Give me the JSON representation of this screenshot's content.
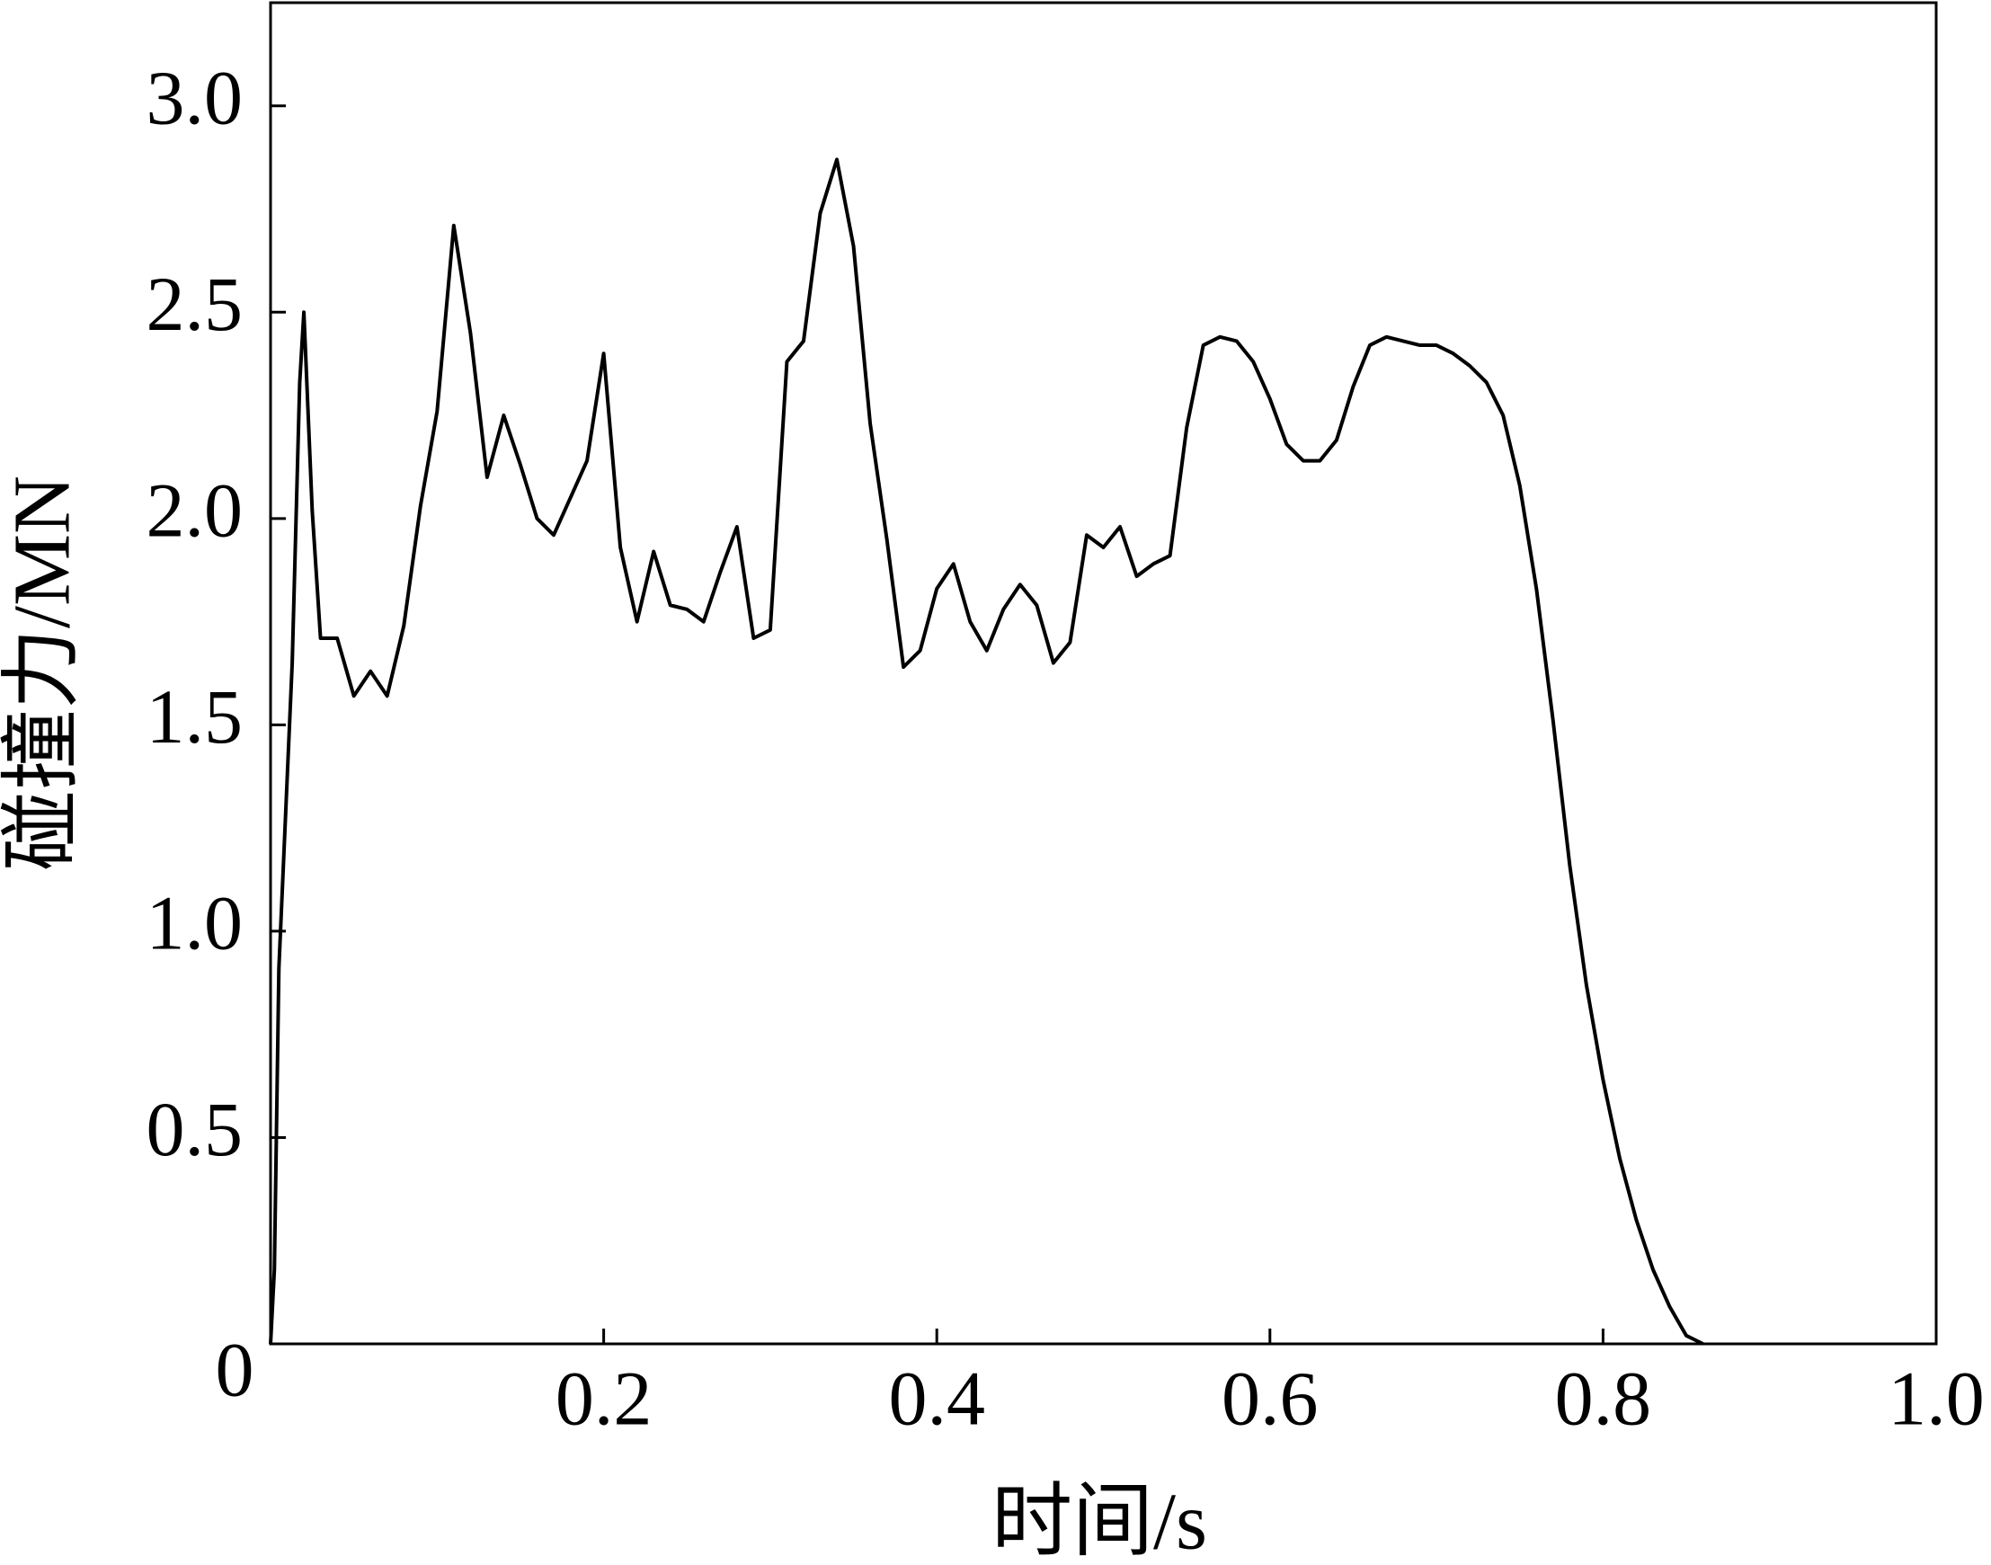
{
  "chart_data": {
    "type": "line",
    "xlabel": "时间/s",
    "ylabel": "碰撞力/MN",
    "color": "#000000",
    "xlim": [
      0,
      1
    ],
    "ylim": [
      0,
      3.25
    ],
    "xticks": [
      0,
      0.2,
      0.4,
      0.6,
      0.8,
      {
        "value": 1,
        "label": "1.0"
      }
    ],
    "yticks": [
      0.5,
      {
        "value": 1,
        "label": "1.0"
      },
      1.5,
      {
        "value": 2,
        "label": "2.0"
      },
      2.5,
      {
        "value": 3,
        "label": "3.0"
      }
    ],
    "x": [
      0,
      0.0023,
      0.005,
      0.009,
      0.013,
      0.0175,
      0.02,
      0.025,
      0.03,
      0.04,
      0.05,
      0.06,
      0.07,
      0.08,
      0.09,
      0.1,
      0.11,
      0.12,
      0.13,
      0.14,
      0.15,
      0.16,
      0.17,
      0.18,
      0.19,
      0.2,
      0.21,
      0.22,
      0.23,
      0.24,
      0.25,
      0.26,
      0.27,
      0.28,
      0.29,
      0.3,
      0.31,
      0.32,
      0.33,
      0.34,
      0.35,
      0.36,
      0.37,
      0.38,
      0.39,
      0.4,
      0.41,
      0.42,
      0.43,
      0.44,
      0.45,
      0.46,
      0.47,
      0.48,
      0.49,
      0.5,
      0.51,
      0.52,
      0.53,
      0.54,
      0.55,
      0.56,
      0.57,
      0.58,
      0.59,
      0.6,
      0.61,
      0.62,
      0.63,
      0.64,
      0.65,
      0.66,
      0.67,
      0.68,
      0.69,
      0.7,
      0.71,
      0.72,
      0.73,
      0.74,
      0.75,
      0.76,
      0.77,
      0.78,
      0.79,
      0.8,
      0.81,
      0.82,
      0.83,
      0.84,
      0.85,
      0.86
    ],
    "values": [
      0,
      0.18,
      0.91,
      1.28,
      1.65,
      2.33,
      2.5,
      2.02,
      1.71,
      1.71,
      1.57,
      1.63,
      1.57,
      1.74,
      2.03,
      2.26,
      2.71,
      2.45,
      2.1,
      2.25,
      2.13,
      2.0,
      1.96,
      2.05,
      2.14,
      2.4,
      1.93,
      1.75,
      1.92,
      1.79,
      1.78,
      1.75,
      1.87,
      1.98,
      1.71,
      1.73,
      2.38,
      2.43,
      2.74,
      2.87,
      2.66,
      2.23,
      1.95,
      1.64,
      1.68,
      1.83,
      1.89,
      1.75,
      1.68,
      1.78,
      1.84,
      1.79,
      1.65,
      1.7,
      1.96,
      1.93,
      1.98,
      1.86,
      1.89,
      1.91,
      2.22,
      2.42,
      2.44,
      2.43,
      2.38,
      2.29,
      2.18,
      2.14,
      2.14,
      2.19,
      2.32,
      2.42,
      2.44,
      2.43,
      2.42,
      2.42,
      2.4,
      2.37,
      2.33,
      2.25,
      2.08,
      1.83,
      1.51,
      1.16,
      0.87,
      0.64,
      0.45,
      0.3,
      0.18,
      0.09,
      0.02,
      0
    ]
  }
}
